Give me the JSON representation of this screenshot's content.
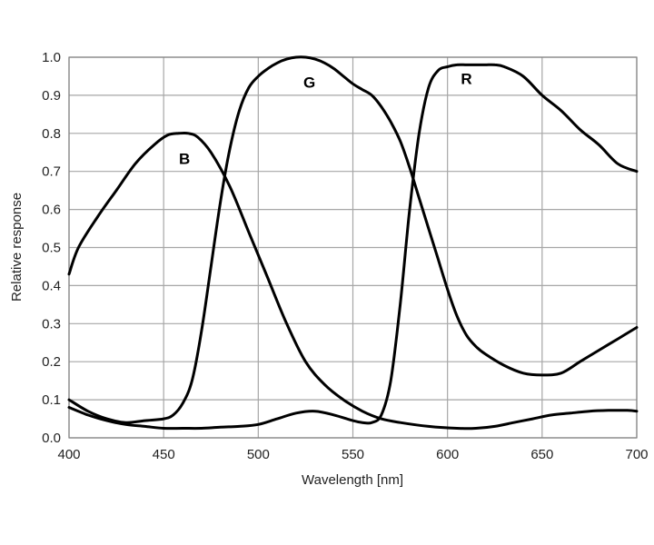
{
  "chart_data": {
    "type": "line",
    "title": "",
    "xlabel": "Wavelength [nm]",
    "ylabel": "Relative response",
    "xlim": [
      400,
      700
    ],
    "ylim": [
      0,
      1
    ],
    "grid": true,
    "x_ticks": [
      "400",
      "450",
      "500",
      "550",
      "600",
      "650",
      "700"
    ],
    "y_ticks": [
      "0.0",
      "0.1",
      "0.2",
      "0.3",
      "0.4",
      "0.5",
      "0.6",
      "0.7",
      "0.8",
      "0.9",
      "1.0"
    ],
    "line_color": "#000000",
    "series": [
      {
        "name": "B",
        "x": [
          400,
          405,
          415,
          425,
          435,
          445,
          452,
          458,
          463,
          468,
          475,
          485,
          495,
          505,
          515,
          525,
          535,
          545,
          555,
          565,
          575,
          590,
          605,
          615,
          625,
          635,
          645,
          655,
          665,
          675,
          685,
          695,
          700
        ],
        "values": [
          0.43,
          0.5,
          0.58,
          0.65,
          0.72,
          0.77,
          0.795,
          0.8,
          0.8,
          0.79,
          0.75,
          0.66,
          0.54,
          0.42,
          0.3,
          0.2,
          0.14,
          0.1,
          0.07,
          0.05,
          0.04,
          0.03,
          0.025,
          0.025,
          0.03,
          0.04,
          0.05,
          0.06,
          0.065,
          0.07,
          0.072,
          0.072,
          0.07
        ],
        "label_position": {
          "x": 461,
          "y": 0.72
        }
      },
      {
        "name": "G",
        "x": [
          400,
          410,
          420,
          430,
          440,
          450,
          455,
          460,
          465,
          470,
          475,
          480,
          485,
          490,
          495,
          500,
          505,
          510,
          515,
          520,
          525,
          530,
          535,
          540,
          545,
          550,
          555,
          560,
          565,
          570,
          575,
          580,
          585,
          590,
          595,
          600,
          605,
          610,
          615,
          620,
          630,
          640,
          650,
          660,
          670,
          680,
          690,
          700
        ],
        "values": [
          0.1,
          0.07,
          0.05,
          0.04,
          0.045,
          0.05,
          0.06,
          0.09,
          0.15,
          0.28,
          0.45,
          0.62,
          0.76,
          0.86,
          0.92,
          0.95,
          0.97,
          0.985,
          0.995,
          1.0,
          1.0,
          0.995,
          0.985,
          0.97,
          0.95,
          0.93,
          0.915,
          0.9,
          0.87,
          0.83,
          0.78,
          0.71,
          0.63,
          0.55,
          0.47,
          0.39,
          0.32,
          0.27,
          0.24,
          0.22,
          0.19,
          0.17,
          0.165,
          0.17,
          0.2,
          0.23,
          0.26,
          0.29
        ],
        "label_position": {
          "x": 527,
          "y": 0.92
        }
      },
      {
        "name": "R",
        "x": [
          400,
          410,
          420,
          430,
          440,
          450,
          460,
          470,
          480,
          490,
          500,
          510,
          520,
          530,
          540,
          550,
          555,
          560,
          565,
          570,
          575,
          580,
          585,
          590,
          595,
          600,
          605,
          610,
          615,
          620,
          625,
          630,
          640,
          650,
          660,
          670,
          680,
          690,
          700
        ],
        "values": [
          0.08,
          0.06,
          0.045,
          0.035,
          0.03,
          0.025,
          0.025,
          0.025,
          0.028,
          0.03,
          0.035,
          0.05,
          0.065,
          0.07,
          0.06,
          0.045,
          0.04,
          0.04,
          0.06,
          0.15,
          0.35,
          0.6,
          0.8,
          0.92,
          0.965,
          0.975,
          0.98,
          0.98,
          0.98,
          0.98,
          0.98,
          0.975,
          0.95,
          0.9,
          0.86,
          0.81,
          0.77,
          0.72,
          0.7
        ],
        "label_position": {
          "x": 610,
          "y": 0.93
        }
      }
    ]
  }
}
